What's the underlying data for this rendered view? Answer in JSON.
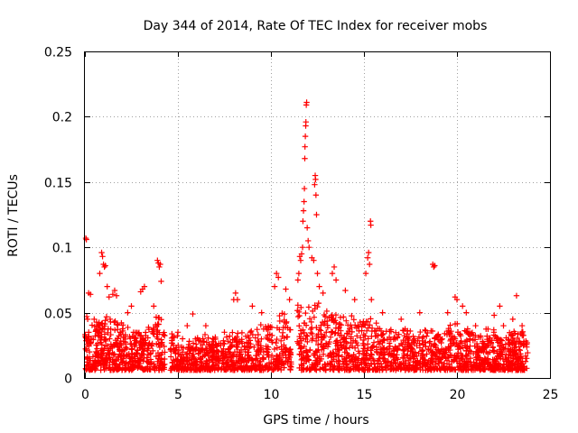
{
  "chart_data": {
    "type": "scatter",
    "title": "Day 344 of 2014, Rate Of TEC Index for receiver mobs",
    "xlabel": "GPS time / hours",
    "ylabel": "ROTI / TECUs",
    "xlim": [
      0,
      25
    ],
    "ylim": [
      0,
      0.25
    ],
    "xticks": [
      0,
      5,
      10,
      15,
      20,
      25
    ],
    "xtick_labels": [
      "0",
      "5",
      "10",
      "15",
      "20",
      "25"
    ],
    "yticks": [
      0,
      0.05,
      0.1,
      0.15,
      0.2,
      0.25
    ],
    "ytick_labels": [
      "0",
      "0.05",
      "0.1",
      "0.15",
      "0.2",
      "0.25"
    ],
    "grid": true,
    "marker": "+",
    "color": "#ff0000",
    "data_gaps_hours": [
      [
        4.3,
        4.6
      ],
      [
        11.1,
        11.4
      ]
    ],
    "series": [
      {
        "name": "ROTI",
        "points": [
          [
            0.05,
            0.107
          ],
          [
            0.08,
            0.106
          ],
          [
            0.1,
            0.047
          ],
          [
            0.15,
            0.045
          ],
          [
            0.2,
            0.065
          ],
          [
            0.3,
            0.064
          ],
          [
            0.5,
            0.045
          ],
          [
            0.8,
            0.08
          ],
          [
            0.9,
            0.096
          ],
          [
            0.95,
            0.093
          ],
          [
            1.0,
            0.087
          ],
          [
            1.05,
            0.085
          ],
          [
            1.1,
            0.086
          ],
          [
            1.2,
            0.07
          ],
          [
            1.3,
            0.062
          ],
          [
            1.5,
            0.064
          ],
          [
            1.6,
            0.067
          ],
          [
            1.7,
            0.063
          ],
          [
            2.3,
            0.05
          ],
          [
            2.5,
            0.055
          ],
          [
            3.0,
            0.066
          ],
          [
            3.1,
            0.068
          ],
          [
            3.2,
            0.07
          ],
          [
            3.7,
            0.055
          ],
          [
            3.9,
            0.09
          ],
          [
            3.95,
            0.088
          ],
          [
            4.0,
            0.085
          ],
          [
            4.05,
            0.087
          ],
          [
            4.1,
            0.074
          ],
          [
            5.0,
            0.035
          ],
          [
            5.5,
            0.04
          ],
          [
            5.8,
            0.049
          ],
          [
            6.5,
            0.04
          ],
          [
            7.5,
            0.035
          ],
          [
            8.0,
            0.06
          ],
          [
            8.1,
            0.065
          ],
          [
            8.2,
            0.06
          ],
          [
            9.0,
            0.055
          ],
          [
            9.5,
            0.05
          ],
          [
            10.2,
            0.07
          ],
          [
            10.3,
            0.08
          ],
          [
            10.4,
            0.077
          ],
          [
            10.8,
            0.068
          ],
          [
            11.0,
            0.06
          ],
          [
            11.45,
            0.075
          ],
          [
            11.5,
            0.08
          ],
          [
            11.55,
            0.093
          ],
          [
            11.6,
            0.09
          ],
          [
            11.65,
            0.095
          ],
          [
            11.7,
            0.1
          ],
          [
            11.72,
            0.12
          ],
          [
            11.75,
            0.128
          ],
          [
            11.78,
            0.135
          ],
          [
            11.8,
            0.145
          ],
          [
            11.82,
            0.168
          ],
          [
            11.83,
            0.177
          ],
          [
            11.85,
            0.185
          ],
          [
            11.87,
            0.193
          ],
          [
            11.88,
            0.196
          ],
          [
            11.9,
            0.209
          ],
          [
            11.92,
            0.211
          ],
          [
            11.95,
            0.115
          ],
          [
            12.0,
            0.105
          ],
          [
            12.05,
            0.1
          ],
          [
            12.2,
            0.092
          ],
          [
            12.3,
            0.09
          ],
          [
            12.35,
            0.148
          ],
          [
            12.38,
            0.155
          ],
          [
            12.4,
            0.152
          ],
          [
            12.42,
            0.14
          ],
          [
            12.45,
            0.125
          ],
          [
            12.5,
            0.08
          ],
          [
            12.6,
            0.07
          ],
          [
            12.8,
            0.065
          ],
          [
            13.3,
            0.08
          ],
          [
            13.4,
            0.085
          ],
          [
            13.5,
            0.075
          ],
          [
            14.0,
            0.067
          ],
          [
            14.5,
            0.06
          ],
          [
            15.1,
            0.08
          ],
          [
            15.2,
            0.092
          ],
          [
            15.25,
            0.096
          ],
          [
            15.3,
            0.087
          ],
          [
            15.35,
            0.12
          ],
          [
            15.37,
            0.117
          ],
          [
            15.4,
            0.06
          ],
          [
            16.0,
            0.05
          ],
          [
            17.0,
            0.045
          ],
          [
            18.0,
            0.05
          ],
          [
            18.7,
            0.087
          ],
          [
            18.75,
            0.085
          ],
          [
            18.8,
            0.086
          ],
          [
            19.5,
            0.05
          ],
          [
            19.9,
            0.062
          ],
          [
            20.0,
            0.06
          ],
          [
            20.3,
            0.055
          ],
          [
            20.5,
            0.05
          ],
          [
            21.0,
            0.04
          ],
          [
            22.0,
            0.048
          ],
          [
            22.3,
            0.055
          ],
          [
            22.5,
            0.04
          ],
          [
            23.0,
            0.045
          ],
          [
            23.2,
            0.063
          ],
          [
            23.5,
            0.04
          ]
        ],
        "dense_band": [
          [
            0.0,
            0.035
          ],
          [
            0.5,
            0.04
          ],
          [
            1.0,
            0.045
          ],
          [
            1.5,
            0.045
          ],
          [
            2.0,
            0.04
          ],
          [
            2.5,
            0.035
          ],
          [
            3.0,
            0.037
          ],
          [
            3.5,
            0.04
          ],
          [
            4.0,
            0.045
          ],
          [
            4.3,
            0.04
          ],
          [
            4.6,
            0.035
          ],
          [
            5.0,
            0.03
          ],
          [
            6.0,
            0.03
          ],
          [
            7.0,
            0.03
          ],
          [
            8.0,
            0.033
          ],
          [
            9.0,
            0.035
          ],
          [
            10.0,
            0.045
          ],
          [
            10.5,
            0.05
          ],
          [
            11.0,
            0.045
          ],
          [
            11.4,
            0.05
          ],
          [
            12.0,
            0.055
          ],
          [
            13.0,
            0.05
          ],
          [
            14.0,
            0.045
          ],
          [
            15.0,
            0.045
          ],
          [
            16.0,
            0.04
          ],
          [
            17.0,
            0.035
          ],
          [
            18.0,
            0.035
          ],
          [
            19.0,
            0.035
          ],
          [
            20.0,
            0.04
          ],
          [
            21.0,
            0.035
          ],
          [
            22.0,
            0.035
          ],
          [
            23.0,
            0.035
          ],
          [
            23.8,
            0.035
          ]
        ]
      }
    ]
  }
}
